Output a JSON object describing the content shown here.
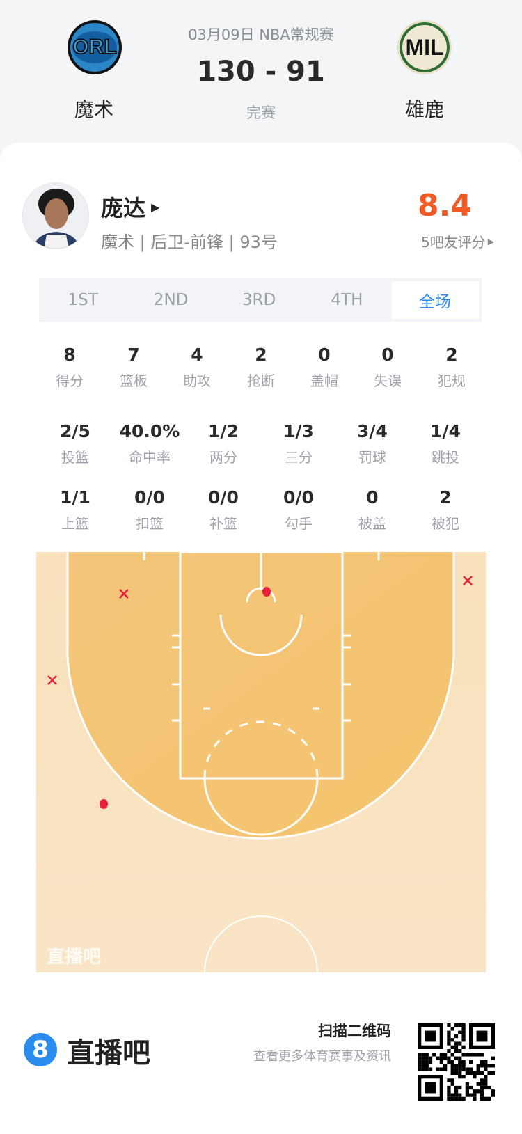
{
  "game": {
    "date_league": "03月09日 NBA常规赛",
    "score": "130 - 91",
    "status": "完赛",
    "home": {
      "abbr": "ORL",
      "name": "魔术"
    },
    "away": {
      "abbr": "MIL",
      "name": "雄鹿"
    }
  },
  "player": {
    "name": "庞达",
    "info": "魔术 | 后卫-前锋 | 93号",
    "rating": "8.4",
    "rating_label": "5吧友评分",
    "rating_color": "#f15a24"
  },
  "tabs": [
    {
      "label": "1ST"
    },
    {
      "label": "2ND"
    },
    {
      "label": "3RD"
    },
    {
      "label": "4TH"
    },
    {
      "label": "全场",
      "active": true
    }
  ],
  "stats_row1": [
    {
      "v": "8",
      "l": "得分"
    },
    {
      "v": "7",
      "l": "篮板"
    },
    {
      "v": "4",
      "l": "助攻"
    },
    {
      "v": "2",
      "l": "抢断"
    },
    {
      "v": "0",
      "l": "盖帽"
    },
    {
      "v": "0",
      "l": "失误"
    },
    {
      "v": "2",
      "l": "犯规"
    }
  ],
  "stats_row2": [
    {
      "v": "2/5",
      "l": "投篮"
    },
    {
      "v": "40.0%",
      "l": "命中率"
    },
    {
      "v": "1/2",
      "l": "两分"
    },
    {
      "v": "1/3",
      "l": "三分"
    },
    {
      "v": "3/4",
      "l": "罚球"
    },
    {
      "v": "1/4",
      "l": "跳投"
    }
  ],
  "stats_row3": [
    {
      "v": "1/1",
      "l": "上篮"
    },
    {
      "v": "0/0",
      "l": "扣篮"
    },
    {
      "v": "0/0",
      "l": "补篮"
    },
    {
      "v": "0/0",
      "l": "勾手"
    },
    {
      "v": "0",
      "l": "被盖"
    },
    {
      "v": "2",
      "l": "被犯"
    }
  ],
  "shot_chart": {
    "watermark": "直播吧",
    "shots": [
      {
        "result": "made"
      },
      {
        "result": "made"
      },
      {
        "result": "missed"
      },
      {
        "result": "missed"
      },
      {
        "result": "missed"
      }
    ],
    "made_color": "#e8203a",
    "miss_color": "#e8203a"
  },
  "footer": {
    "brand": "直播吧",
    "brand_icon": "8",
    "qr_title": "扫描二维码",
    "qr_subtitle": "查看更多体育赛事及资讯",
    "accent": "#2b8cf0"
  }
}
